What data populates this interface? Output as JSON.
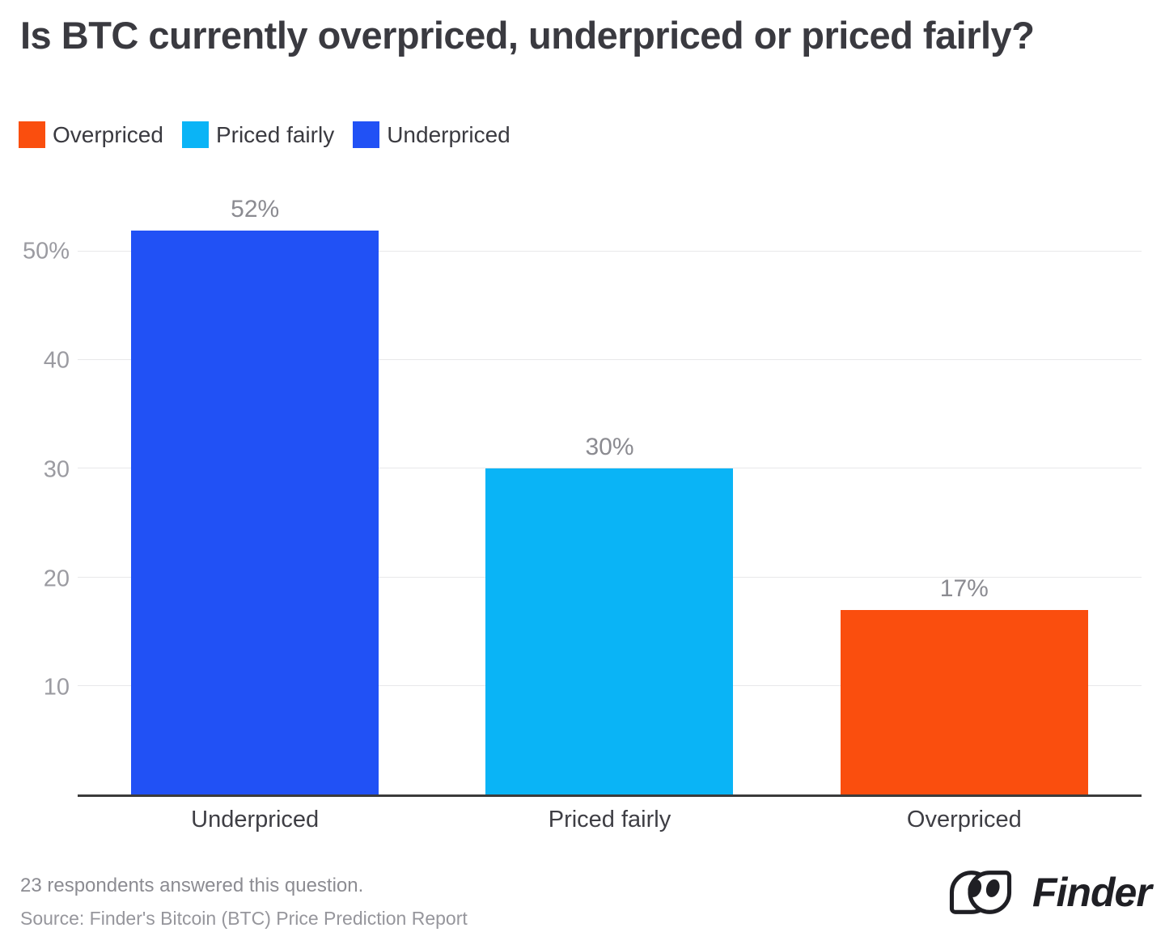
{
  "title": "Is BTC currently overpriced, underpriced or priced fairly?",
  "legend": {
    "items": [
      {
        "label": "Overpriced",
        "color": "#fa4e0e"
      },
      {
        "label": "Priced fairly",
        "color": "#0ab4f6"
      },
      {
        "label": "Underpriced",
        "color": "#2151f5"
      }
    ]
  },
  "chart_data": {
    "type": "bar",
    "title": "Is BTC currently overpriced, underpriced or priced fairly?",
    "categories": [
      "Underpriced",
      "Priced fairly",
      "Overpriced"
    ],
    "values": [
      52,
      30,
      17
    ],
    "data_labels": [
      "52%",
      "30%",
      "17%"
    ],
    "bar_colors": [
      "#2151f5",
      "#0ab4f6",
      "#fa4e0e"
    ],
    "xlabel": "",
    "ylabel": "",
    "ylim": [
      0,
      55
    ],
    "yticks": [
      {
        "value": 10,
        "label": "10"
      },
      {
        "value": 20,
        "label": "20"
      },
      {
        "value": 30,
        "label": "30"
      },
      {
        "value": 40,
        "label": "40"
      },
      {
        "value": 50,
        "label": "50%"
      }
    ],
    "grid": true,
    "legend_position": "top-left",
    "legend_entries": [
      "Overpriced",
      "Priced fairly",
      "Underpriced"
    ]
  },
  "footer": {
    "note": "23 respondents answered this question.",
    "source": "Source: Finder's Bitcoin (BTC) Price Prediction Report",
    "brand_name": "Finder"
  }
}
